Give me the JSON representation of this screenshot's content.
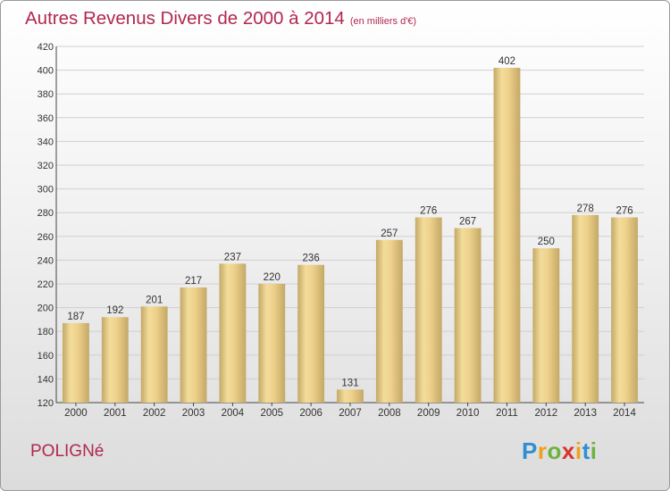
{
  "header": {
    "title": "Autres Revenus Divers de 2000 à 2014",
    "unit": "(en milliers d'€)"
  },
  "footer": {
    "commune": "POLIGNé",
    "logo_text": "Proxiti"
  },
  "colors": {
    "title": "#b1284f",
    "bar_light": "#f3dc9a",
    "bar_dark": "#c4a866",
    "grid": "#cfcfcf"
  },
  "chart_data": {
    "type": "bar",
    "title": "Autres Revenus Divers de 2000 à 2014",
    "subtitle": "(en milliers d'€)",
    "xlabel": "",
    "ylabel": "",
    "categories": [
      "2000",
      "2001",
      "2002",
      "2003",
      "2004",
      "2005",
      "2006",
      "2007",
      "2008",
      "2009",
      "2010",
      "2011",
      "2012",
      "2013",
      "2014"
    ],
    "values": [
      187,
      192,
      201,
      217,
      237,
      220,
      236,
      131,
      257,
      276,
      267,
      402,
      250,
      278,
      276
    ],
    "ylim": [
      120,
      420
    ],
    "yticks": [
      120,
      140,
      160,
      180,
      200,
      220,
      240,
      260,
      280,
      300,
      320,
      340,
      360,
      380,
      400,
      420
    ],
    "grid": true,
    "data_labels": true
  }
}
